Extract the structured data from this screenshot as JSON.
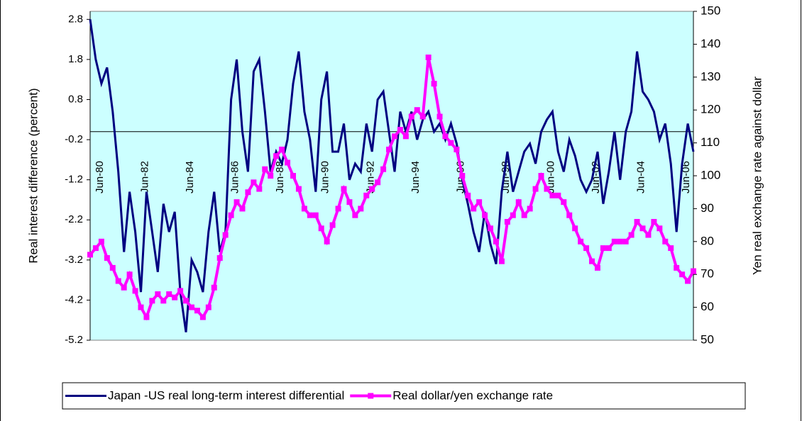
{
  "chart_data": {
    "type": "line",
    "categories": [
      "Jun-80",
      null,
      null,
      null,
      null,
      null,
      null,
      null,
      "Jun-82",
      null,
      null,
      null,
      null,
      null,
      null,
      null,
      "Jun-84",
      null,
      null,
      null,
      null,
      null,
      null,
      null,
      "Jun-86",
      null,
      null,
      null,
      null,
      null,
      null,
      null,
      "Jun-88",
      null,
      null,
      null,
      null,
      null,
      null,
      null,
      "Jun-90",
      null,
      null,
      null,
      null,
      null,
      null,
      null,
      "Jun-92",
      null,
      null,
      null,
      null,
      null,
      null,
      null,
      "Jun-94",
      null,
      null,
      null,
      null,
      null,
      null,
      null,
      "Jun-96",
      null,
      null,
      null,
      null,
      null,
      null,
      null,
      "Jun-98",
      null,
      null,
      null,
      null,
      null,
      null,
      null,
      "Jun-00",
      null,
      null,
      null,
      null,
      null,
      null,
      null,
      "Jun-02",
      null,
      null,
      null,
      null,
      null,
      null,
      null,
      "Jun-04",
      null,
      null,
      null,
      null,
      null,
      null,
      null,
      "Jun-06",
      null,
      null,
      null
    ],
    "series": [
      {
        "name": "Japan -US real long-term interest differential",
        "color": "#000080",
        "values": [
          2.8,
          1.8,
          1.2,
          1.6,
          0.5,
          -1.0,
          -3.0,
          -1.5,
          -2.5,
          -4.0,
          -1.5,
          -2.5,
          -3.5,
          -1.8,
          -2.5,
          -2.0,
          -4.0,
          -5.0,
          -3.2,
          -3.5,
          -4.0,
          -2.5,
          -1.5,
          -3.0,
          -2.5,
          0.8,
          1.8,
          0.0,
          -1.0,
          1.5,
          1.8,
          0.5,
          -1.0,
          -0.5,
          -0.8,
          -0.2,
          1.2,
          2.0,
          0.5,
          -0.2,
          -1.5,
          0.8,
          1.5,
          -0.5,
          -0.5,
          0.2,
          -1.2,
          -0.8,
          -1.0,
          0.2,
          -0.5,
          0.8,
          1.0,
          0.0,
          -1.0,
          0.5,
          0.0,
          0.5,
          -0.2,
          0.3,
          0.5,
          0.0,
          0.2,
          -0.2,
          0.2,
          -0.3,
          -1.2,
          -1.8,
          -2.5,
          -3.0,
          -2.0,
          -2.8,
          -3.3,
          -1.5,
          -0.5,
          -1.5,
          -1.0,
          -0.5,
          -0.3,
          -0.8,
          0.0,
          0.3,
          0.5,
          -0.5,
          -1.0,
          -0.2,
          -0.6,
          -1.2,
          -1.5,
          -1.2,
          -0.5,
          -1.8,
          -1.0,
          0.0,
          -1.2,
          0.0,
          0.5,
          2.0,
          1.0,
          0.8,
          0.5,
          -0.2,
          0.2,
          -0.8,
          -2.5,
          -0.8,
          0.2,
          -0.5
        ]
      },
      {
        "name": "Real dollar/yen exchange rate",
        "color": "#ff00ff",
        "axis": "y2",
        "values": [
          76,
          78,
          80,
          75,
          72,
          68,
          66,
          70,
          65,
          60,
          57,
          62,
          64,
          62,
          64,
          63,
          65,
          62,
          60,
          59,
          57,
          60,
          66,
          75,
          82,
          88,
          92,
          90,
          95,
          98,
          96,
          102,
          100,
          106,
          108,
          104,
          100,
          96,
          90,
          88,
          88,
          84,
          80,
          85,
          90,
          96,
          92,
          88,
          90,
          94,
          96,
          98,
          102,
          108,
          112,
          114,
          112,
          118,
          120,
          118,
          136,
          128,
          118,
          112,
          110,
          108,
          100,
          94,
          90,
          92,
          88,
          84,
          80,
          74,
          86,
          88,
          92,
          88,
          90,
          96,
          100,
          96,
          94,
          94,
          92,
          88,
          84,
          80,
          78,
          74,
          72,
          78,
          78,
          80,
          80,
          80,
          82,
          86,
          84,
          82,
          86,
          84,
          80,
          78,
          72,
          70,
          68,
          71
        ]
      }
    ],
    "y_label": "Real interest difference (percent)",
    "y2_label": "Yen real exchange rate against dollar",
    "ylim": [
      -5.2,
      3.0
    ],
    "yticks": [
      -5.2,
      -4.2,
      -3.2,
      -2.2,
      -1.2,
      -0.2,
      0.8,
      1.8,
      2.8
    ],
    "y2lim": [
      50,
      150
    ],
    "y2ticks": [
      50,
      60,
      70,
      80,
      90,
      100,
      110,
      120,
      130,
      140,
      150
    ],
    "legend": "bottom"
  }
}
